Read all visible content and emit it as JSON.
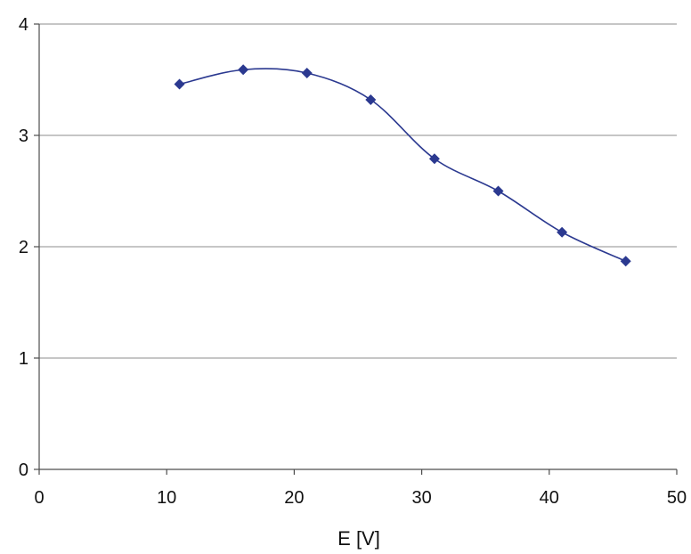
{
  "chart_data": {
    "type": "scatter",
    "title": "",
    "xlabel": "E [V]",
    "ylabel": "",
    "xlim": [
      0,
      50
    ],
    "ylim": [
      0,
      4
    ],
    "x_ticks": [
      0,
      10,
      20,
      30,
      40,
      50
    ],
    "y_ticks": [
      0,
      1,
      2,
      3,
      4
    ],
    "x_tick_labels": [
      "0",
      "10",
      "20",
      "30",
      "40",
      "50"
    ],
    "y_tick_labels": [
      "0",
      "1",
      "2",
      "3",
      "4"
    ],
    "grid": "horizontal",
    "legend": "none",
    "marker": "diamond",
    "line_style": "smooth",
    "series": [
      {
        "x": [
          11,
          16,
          21,
          26,
          31,
          36,
          41,
          46
        ],
        "y": [
          3.46,
          3.59,
          3.56,
          3.32,
          2.79,
          2.5,
          2.13,
          1.87
        ]
      }
    ]
  },
  "colors": {
    "series": "#2b3990",
    "grid": "#8c8c8c",
    "axis": "#4d4d4d",
    "background": "#ffffff"
  }
}
